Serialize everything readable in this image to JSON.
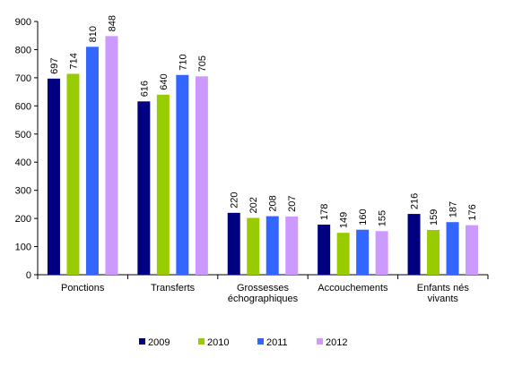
{
  "chart_data": {
    "type": "bar",
    "title": "",
    "xlabel": "",
    "ylabel": "",
    "ylim": [
      0,
      900
    ],
    "yticks": [
      0,
      100,
      200,
      300,
      400,
      500,
      600,
      700,
      800,
      900
    ],
    "categories": [
      [
        "Ponctions"
      ],
      [
        "Transferts"
      ],
      [
        "Grossesses",
        "échographiques"
      ],
      [
        "Accouchements"
      ],
      [
        "Enfants nés",
        "vivants"
      ]
    ],
    "series": [
      {
        "name": "2009",
        "color": "#000080",
        "values": [
          697,
          616,
          220,
          178,
          216
        ]
      },
      {
        "name": "2010",
        "color": "#99CC00",
        "values": [
          714,
          640,
          202,
          149,
          159
        ]
      },
      {
        "name": "2011",
        "color": "#3366FF",
        "values": [
          810,
          710,
          208,
          160,
          187
        ]
      },
      {
        "name": "2012",
        "color": "#CC99FF",
        "values": [
          848,
          705,
          207,
          155,
          176
        ]
      }
    ],
    "grid": false,
    "legend_position": "bottom"
  }
}
